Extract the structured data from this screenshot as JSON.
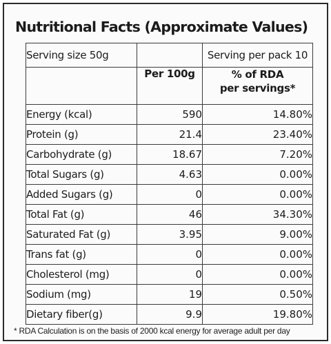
{
  "title": "Nutritional Facts (Approximate Values)",
  "serving": {
    "size": "Serving size 50g",
    "per_pack": "Serving per pack 10"
  },
  "headers": {
    "per100": "Per 100g",
    "rda_line1": "% of RDA",
    "rda_line2": "per servings*"
  },
  "rows": [
    {
      "name": "Energy (kcal)",
      "per100": "590",
      "rda": "14.80%"
    },
    {
      "name": "Protein (g)",
      "per100": "21.4",
      "rda": "23.40%"
    },
    {
      "name": "Carbohydrate (g)",
      "per100": "18.67",
      "rda": "7.20%"
    },
    {
      "name": "Total Sugars (g)",
      "per100": "4.63",
      "rda": "0.00%"
    },
    {
      "name": "Added Sugars (g)",
      "per100": "0",
      "rda": "0.00%"
    },
    {
      "name": "Total Fat (g)",
      "per100": "46",
      "rda": "34.30%"
    },
    {
      "name": "Saturated Fat (g)",
      "per100": "3.95",
      "rda": "9.00%"
    },
    {
      "name": "Trans fat (g)",
      "per100": "0",
      "rda": "0.00%"
    },
    {
      "name": "Cholesterol (mg)",
      "per100": "0",
      "rda": "0.00%"
    },
    {
      "name": "Sodium (mg)",
      "per100": "19",
      "rda": "0.50%"
    },
    {
      "name": "Dietary fiber(g)",
      "per100": "9.9",
      "rda": "19.80%"
    }
  ],
  "footnote": "* RDA Calculation is on the basis of 2000 kcal energy for average adult per day"
}
